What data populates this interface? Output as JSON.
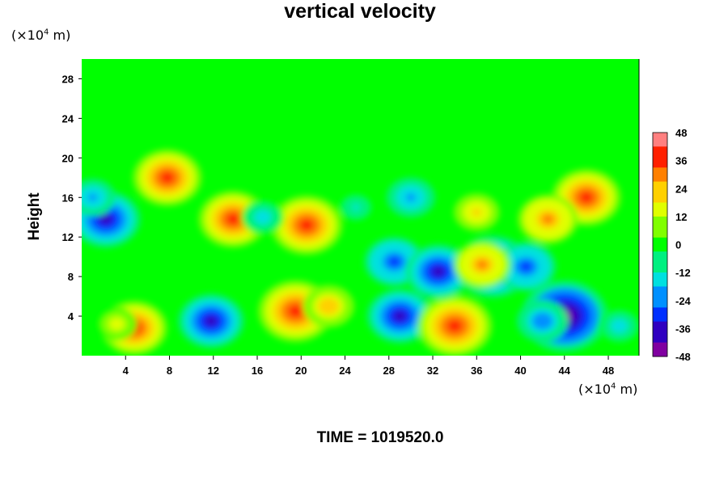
{
  "chart_data": {
    "type": "heatmap",
    "title": "vertical velocity",
    "x_unit": {
      "prefix": "(×10",
      "exp": "4",
      "suffix": " m)"
    },
    "y_unit": {
      "prefix": "(×10",
      "exp": "4",
      "suffix": " m)"
    },
    "ylabel": "Height",
    "xlim": [
      0,
      50.8
    ],
    "ylim": [
      0,
      30
    ],
    "x_ticks": [
      4,
      8,
      12,
      16,
      20,
      24,
      28,
      32,
      36,
      40,
      44,
      48
    ],
    "y_ticks": [
      4,
      8,
      12,
      16,
      20,
      24,
      28
    ],
    "colorbar": {
      "range": [
        -48,
        48
      ],
      "ticks": [
        48,
        36,
        24,
        12,
        0,
        -12,
        -24,
        -36,
        -48
      ],
      "colors": [
        "#8000a0",
        "#3000c0",
        "#0030ff",
        "#0090ff",
        "#00e0e0",
        "#00f080",
        "#00ff00",
        "#80ff00",
        "#e0ff00",
        "#ffd000",
        "#ff8000",
        "#ff2000",
        "#ff8080"
      ]
    },
    "features": [
      {
        "x": 4.8,
        "y": 2.8,
        "value": 34
      },
      {
        "x": 3.2,
        "y": 3.2,
        "value": 16
      },
      {
        "x": 11.8,
        "y": 3.5,
        "value": -34
      },
      {
        "x": 19.5,
        "y": 4.5,
        "value": 40
      },
      {
        "x": 22.5,
        "y": 5.0,
        "value": 24
      },
      {
        "x": 29.0,
        "y": 4.0,
        "value": -34
      },
      {
        "x": 34.0,
        "y": 3.0,
        "value": 40
      },
      {
        "x": 44.0,
        "y": 4.0,
        "value": -48
      },
      {
        "x": 42.0,
        "y": 3.5,
        "value": -24
      },
      {
        "x": 49.0,
        "y": 3.0,
        "value": -18
      },
      {
        "x": 7.8,
        "y": 18.0,
        "value": 36
      },
      {
        "x": 13.8,
        "y": 13.8,
        "value": 36
      },
      {
        "x": 20.5,
        "y": 13.2,
        "value": 38
      },
      {
        "x": 2.2,
        "y": 13.8,
        "value": -36
      },
      {
        "x": 1.0,
        "y": 16.0,
        "value": -20
      },
      {
        "x": 46.0,
        "y": 16.0,
        "value": 36
      },
      {
        "x": 42.5,
        "y": 13.8,
        "value": 30
      },
      {
        "x": 28.5,
        "y": 9.5,
        "value": -30
      },
      {
        "x": 32.5,
        "y": 8.5,
        "value": -34
      },
      {
        "x": 37.5,
        "y": 9.0,
        "value": -40
      },
      {
        "x": 40.5,
        "y": 9.0,
        "value": -30
      },
      {
        "x": 36.5,
        "y": 9.2,
        "value": 28
      },
      {
        "x": 30.0,
        "y": 16.0,
        "value": -22
      },
      {
        "x": 16.5,
        "y": 14.0,
        "value": -18
      },
      {
        "x": 25.0,
        "y": 15.0,
        "value": -12
      },
      {
        "x": 36.0,
        "y": 14.5,
        "value": 20
      }
    ]
  },
  "time_label": "TIME = 1019520.0"
}
